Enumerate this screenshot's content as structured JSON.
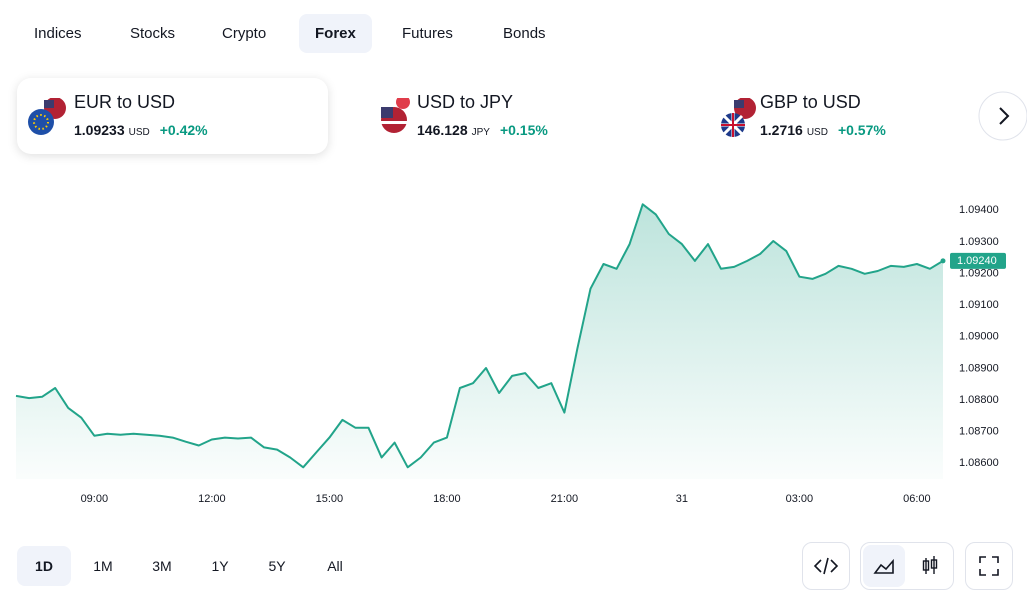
{
  "tabs": [
    "Indices",
    "Stocks",
    "Crypto",
    "Forex",
    "Futures",
    "Bonds"
  ],
  "cards": [
    {
      "name": "EUR to USD",
      "price": "1.09233",
      "unit": "USD",
      "change": "+0.42%"
    },
    {
      "name": "USD to JPY",
      "price": "146.128",
      "unit": "JPY",
      "change": "+0.15%"
    },
    {
      "name": "GBP to USD",
      "price": "1.2716",
      "unit": "USD",
      "change": "+0.57%"
    }
  ],
  "ranges": [
    "1D",
    "1M",
    "3M",
    "1Y",
    "5Y",
    "All"
  ],
  "chart_data": {
    "type": "area",
    "categories": [
      null,
      null,
      null,
      null,
      null,
      null,
      "09:00",
      null,
      null,
      null,
      null,
      null,
      null,
      null,
      null,
      "12:00",
      null,
      null,
      null,
      null,
      null,
      null,
      null,
      null,
      "15:00",
      null,
      null,
      null,
      null,
      null,
      null,
      null,
      null,
      "18:00",
      null,
      null,
      null,
      null,
      null,
      null,
      null,
      null,
      "21:00",
      null,
      null,
      null,
      null,
      null,
      null,
      null,
      null,
      "31",
      null,
      null,
      null,
      null,
      null,
      null,
      null,
      null,
      "03:00",
      null,
      null,
      null,
      null,
      null,
      null,
      null,
      null,
      "06:00",
      null,
      null
    ],
    "series": [
      {
        "name": "EUR to USD",
        "color": "#22a48a",
        "values": [
          1.08813,
          1.08806,
          1.0881,
          1.08838,
          1.08775,
          1.08744,
          1.08687,
          1.08693,
          1.0869,
          1.08693,
          1.0869,
          1.08687,
          1.08681,
          1.08668,
          1.08656,
          1.08675,
          1.08681,
          1.08678,
          1.08681,
          1.0865,
          1.08643,
          1.08618,
          1.08587,
          1.08634,
          1.08681,
          1.08737,
          1.08712,
          1.08712,
          1.08618,
          1.08665,
          1.08587,
          1.08618,
          1.08665,
          1.08681,
          1.08838,
          1.08853,
          1.08901,
          1.08822,
          1.08876,
          1.08885,
          1.08838,
          1.08853,
          1.0876,
          1.08963,
          1.09152,
          1.0923,
          1.09215,
          1.09293,
          1.09419,
          1.09387,
          1.09325,
          1.09293,
          1.0924,
          1.09293,
          1.09215,
          1.09221,
          1.0924,
          1.09262,
          1.09303,
          1.09271,
          1.0919,
          1.09183,
          1.09199,
          1.09224,
          1.09215,
          1.09199,
          1.09208,
          1.09224,
          1.09221,
          1.0923,
          1.09215,
          1.0924
        ]
      }
    ],
    "last_label": "1.09240",
    "ylim": [
      1.0855,
      1.0948
    ],
    "yticks": [
      {
        "value": 1.086,
        "label": "1.08600"
      },
      {
        "value": 1.087,
        "label": "1.08700"
      },
      {
        "value": 1.088,
        "label": "1.08800"
      },
      {
        "value": 1.089,
        "label": "1.08900"
      },
      {
        "value": 1.09,
        "label": "1.09000"
      },
      {
        "value": 1.091,
        "label": "1.09100"
      },
      {
        "value": 1.092,
        "label": "1.09200"
      },
      {
        "value": 1.093,
        "label": "1.09300"
      },
      {
        "value": 1.094,
        "label": "1.09400"
      }
    ],
    "grid": false
  }
}
